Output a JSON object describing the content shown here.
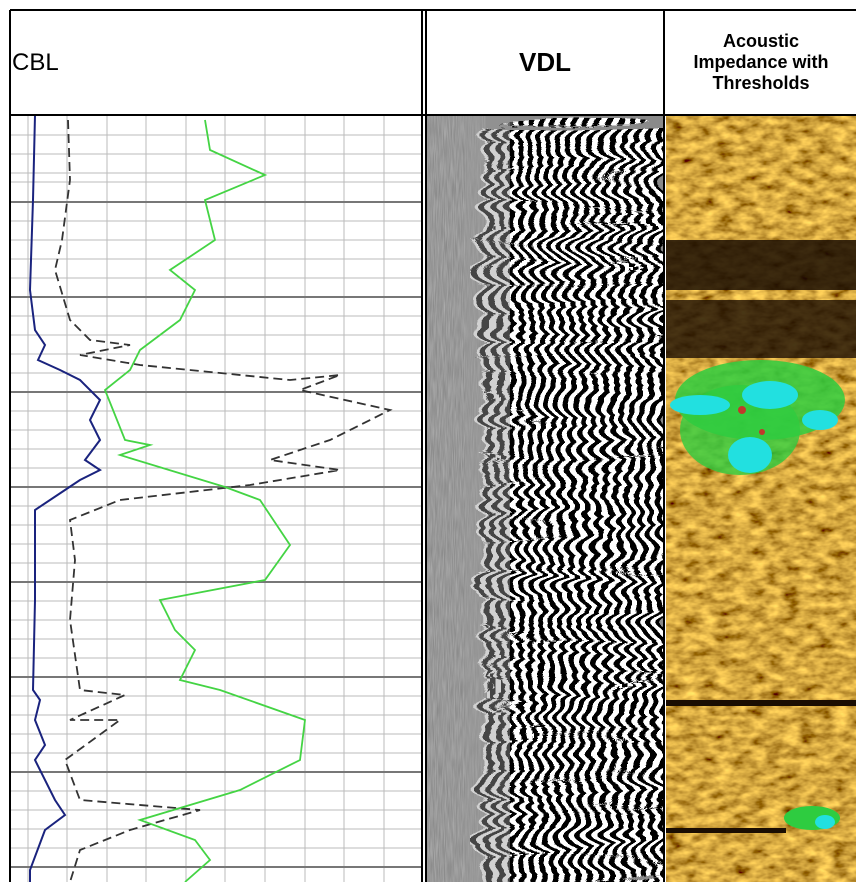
{
  "header": {
    "cbl": "CBL",
    "vdl": "VDL",
    "impedance": "Acoustic Impedance with Thresholds"
  }
}
